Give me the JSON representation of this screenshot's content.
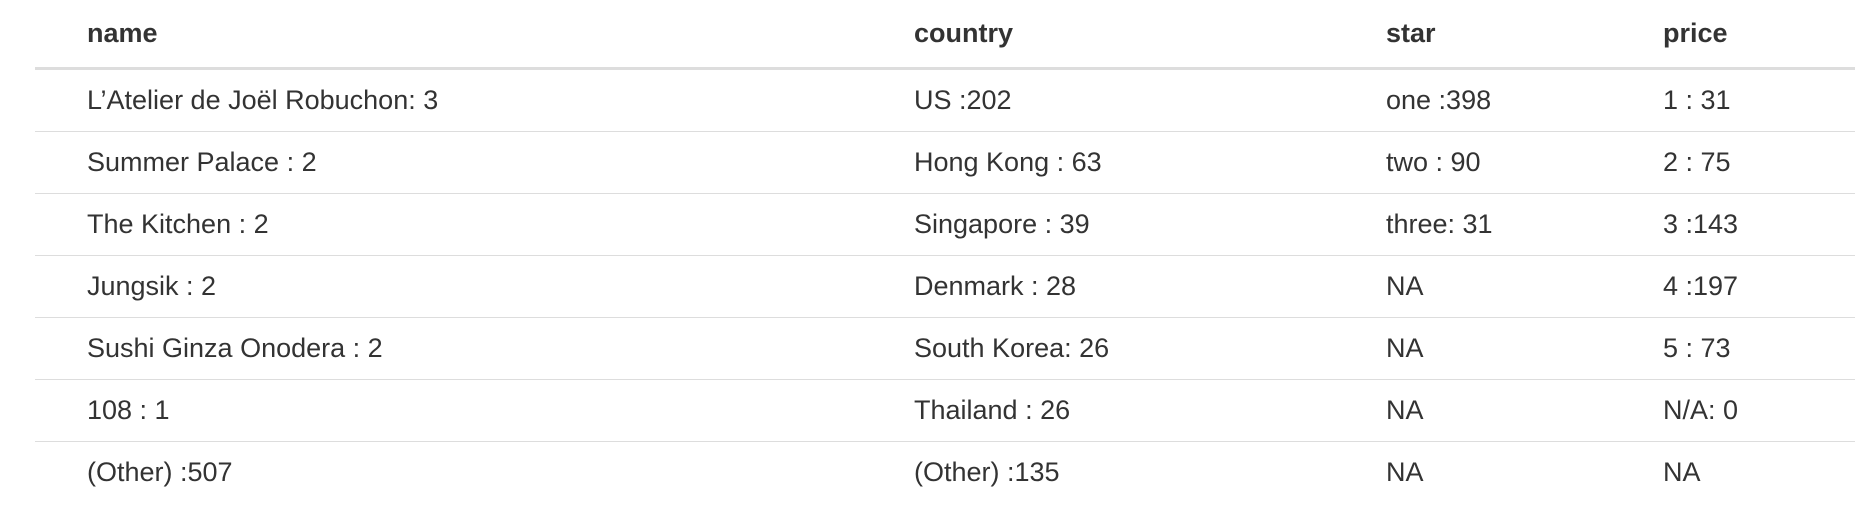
{
  "table": {
    "columns": [
      "name",
      "country",
      "star",
      "price"
    ],
    "rows": [
      [
        "L’Atelier de Joël Robuchon: 3",
        "US :202",
        "one :398",
        "1 : 31"
      ],
      [
        "Summer Palace : 2",
        "Hong Kong : 63",
        "two : 90",
        "2 : 75"
      ],
      [
        "The Kitchen : 2",
        "Singapore : 39",
        "three: 31",
        "3 :143"
      ],
      [
        "Jungsik : 2",
        "Denmark : 28",
        "NA",
        "4 :197"
      ],
      [
        "Sushi Ginza Onodera : 2",
        "South Korea: 26",
        "NA",
        "5 : 73"
      ],
      [
        "108 : 1",
        "Thailand : 26",
        "NA",
        "N/A: 0"
      ],
      [
        "(Other) :507",
        "(Other) :135",
        "NA",
        "NA"
      ]
    ]
  }
}
